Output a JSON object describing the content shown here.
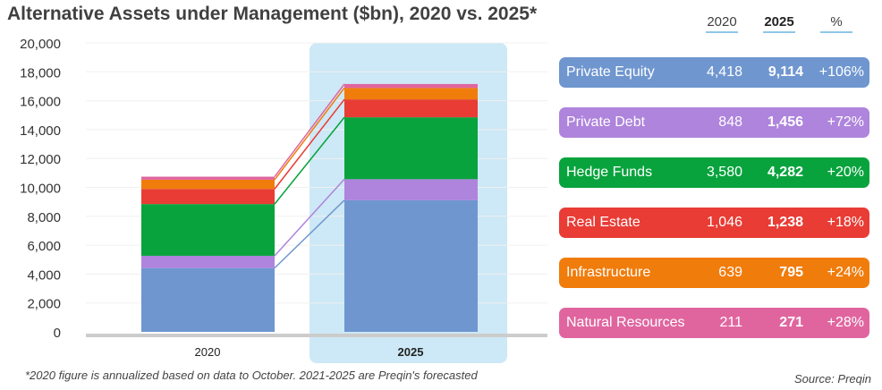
{
  "title": "Alternative Assets under Management ($bn), 2020 vs. 2025*",
  "footnote": "*2020 figure is annualized based on data to October. 2021-2025 are Preqin's forecasted",
  "source": "Source: Preqin",
  "table_headers": [
    "2020",
    "2025",
    "%"
  ],
  "colors": {
    "private_equity": "#6f96cf",
    "private_debt": "#ae84dc",
    "hedge_funds": "#09a33d",
    "real_estate": "#e83c35",
    "infrastructure": "#f07c0c",
    "natural_resources": "#e0659f",
    "highlight": "#cde8f6",
    "axis": "#cccccc"
  },
  "chart_data": {
    "type": "bar",
    "stacked": true,
    "categories": [
      "2020",
      "2025"
    ],
    "highlight_category": "2025",
    "ylim": [
      0,
      20000
    ],
    "yticks": [
      "0",
      "2,000",
      "4,000",
      "6,000",
      "8,000",
      "10,000",
      "12,000",
      "14,000",
      "16,000",
      "18,000",
      "20,000"
    ],
    "series": [
      {
        "name": "Private Equity",
        "values": [
          4418,
          9114
        ],
        "v20": "4,418",
        "v25": "9,114",
        "pct": "+106%"
      },
      {
        "name": "Private Debt",
        "values": [
          848,
          1456
        ],
        "v20": "848",
        "v25": "1,456",
        "pct": "+72%"
      },
      {
        "name": "Hedge Funds",
        "values": [
          3580,
          4282
        ],
        "v20": "3,580",
        "v25": "4,282",
        "pct": "+20%"
      },
      {
        "name": "Real Estate",
        "values": [
          1046,
          1238
        ],
        "v20": "1,046",
        "v25": "1,238",
        "pct": "+18%"
      },
      {
        "name": "Infrastructure",
        "values": [
          639,
          795
        ],
        "v20": "639",
        "v25": "795",
        "pct": "+24%"
      },
      {
        "name": "Natural Resources",
        "values": [
          211,
          271
        ],
        "v20": "211",
        "v25": "271",
        "pct": "+28%"
      }
    ]
  }
}
